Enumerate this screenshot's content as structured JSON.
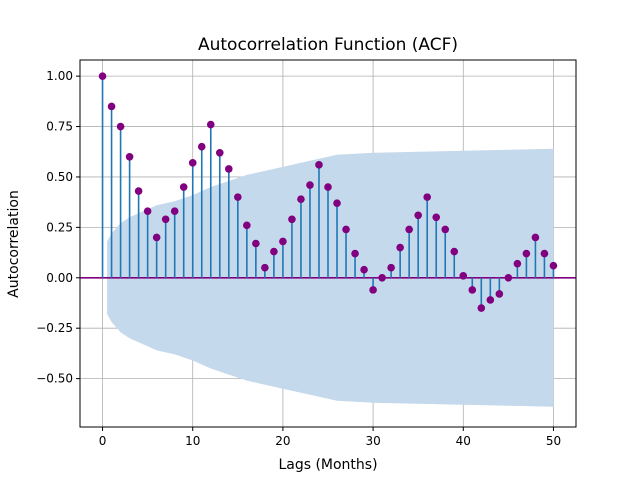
{
  "chart_data": {
    "type": "stem",
    "title": "Autocorrelation Function (ACF)",
    "xlabel": "Lags (Months)",
    "ylabel": "Autocorrelation",
    "xlim": [
      -2.5,
      52.5
    ],
    "ylim": [
      -0.74,
      1.08
    ],
    "xticks": [
      0,
      10,
      20,
      30,
      40,
      50
    ],
    "yticks": [
      -0.5,
      -0.25,
      0.0,
      0.25,
      0.5,
      0.75,
      1.0
    ],
    "ytick_labels": [
      "−0.50",
      "−0.25",
      "0.00",
      "0.25",
      "0.50",
      "0.75",
      "1.00"
    ],
    "xtick_labels": [
      "0",
      "10",
      "20",
      "30",
      "40",
      "50"
    ],
    "grid": true,
    "lags": [
      0,
      1,
      2,
      3,
      4,
      5,
      6,
      7,
      8,
      9,
      10,
      11,
      12,
      13,
      14,
      15,
      16,
      17,
      18,
      19,
      20,
      21,
      22,
      23,
      24,
      25,
      26,
      27,
      28,
      29,
      30,
      31,
      32,
      33,
      34,
      35,
      36,
      37,
      38,
      39,
      40,
      41,
      42,
      43,
      44,
      45,
      46,
      47,
      48,
      49,
      50
    ],
    "values": [
      1.0,
      0.85,
      0.75,
      0.6,
      0.43,
      0.33,
      0.2,
      0.29,
      0.33,
      0.45,
      0.57,
      0.65,
      0.76,
      0.62,
      0.54,
      0.4,
      0.26,
      0.17,
      0.05,
      0.13,
      0.18,
      0.29,
      0.39,
      0.46,
      0.56,
      0.45,
      0.37,
      0.24,
      0.12,
      0.04,
      -0.06,
      0.0,
      0.05,
      0.15,
      0.24,
      0.31,
      0.4,
      0.3,
      0.24,
      0.13,
      0.01,
      -0.06,
      -0.15,
      -0.11,
      -0.08,
      0.0,
      0.07,
      0.12,
      0.2,
      0.12,
      0.06
    ],
    "confidence_band": {
      "lags": [
        0.5,
        1,
        2,
        3,
        4,
        5,
        6,
        8,
        10,
        12,
        14,
        16,
        18,
        20,
        22,
        24,
        26,
        28,
        30,
        35,
        40,
        45,
        50
      ],
      "upper": [
        0.18,
        0.22,
        0.27,
        0.3,
        0.32,
        0.34,
        0.36,
        0.38,
        0.41,
        0.45,
        0.48,
        0.51,
        0.53,
        0.55,
        0.57,
        0.59,
        0.61,
        0.615,
        0.62,
        0.625,
        0.63,
        0.635,
        0.64
      ]
    },
    "colors": {
      "stem": "#1f77b4",
      "marker": "#800080",
      "zero_line": "#800080",
      "band": "#c5d9ec",
      "grid": "#b0b0b0"
    }
  }
}
